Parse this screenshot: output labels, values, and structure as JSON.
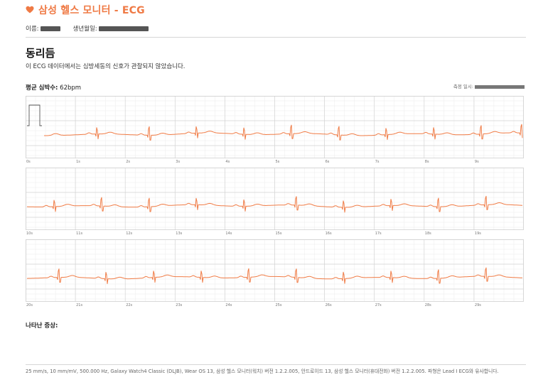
{
  "header": {
    "title": "삼성 헬스 모니터 - ECG",
    "icon": "heart-icon",
    "accent": "#ef7a45"
  },
  "patient": {
    "name_label": "이름:",
    "dob_label": "생년월일:"
  },
  "result": {
    "title": "동리듬",
    "description": "이 ECG 데이터에서는 심방세동의 신호가 관찰되지 않았습니다."
  },
  "heart_rate": {
    "label": "평균 심박수:",
    "value": "62bpm"
  },
  "measured": {
    "label": "측정 일시:"
  },
  "strips": [
    {
      "ticks": [
        "0s",
        "1s",
        "2s",
        "3s",
        "4s",
        "5s",
        "6s",
        "7s",
        "8s",
        "9s"
      ],
      "beats": [
        0.35,
        1.5,
        2.6,
        3.6,
        4.6,
        5.6,
        6.6,
        7.6,
        8.6,
        9.6,
        10.45
      ],
      "calibration": true
    },
    {
      "ticks": [
        "10s",
        "11s",
        "12s",
        "13s",
        "14s",
        "15s",
        "16s",
        "17s",
        "18s",
        "19s"
      ],
      "beats": [
        0.6,
        1.6,
        2.6,
        3.6,
        4.6,
        5.7,
        6.7,
        7.7,
        8.7,
        9.7
      ],
      "calibration": false
    },
    {
      "ticks": [
        "20s",
        "21s",
        "22s",
        "23s",
        "24s",
        "25s",
        "26s",
        "27s",
        "28s",
        "29s"
      ],
      "beats": [
        0.7,
        1.7,
        2.7,
        3.7,
        4.7,
        5.7,
        6.7,
        7.7,
        8.7,
        9.7
      ],
      "calibration": false
    }
  ],
  "ecg_color": "#f07b45",
  "symptoms": {
    "label": "나타난 증상:"
  },
  "footer": "25 mm/s, 10 mm/mV, 500.000 Hz, Galaxy Watch4 Classic (DLJB), Wear OS 13, 삼성 헬스 모니터(워치) 버전 1.2.2.005, 안드로이드 13, 삼성 헬스 모니터(휴대전화) 버전 1.2.2.005. 파형은 Lead I ECG와 유사합니다."
}
